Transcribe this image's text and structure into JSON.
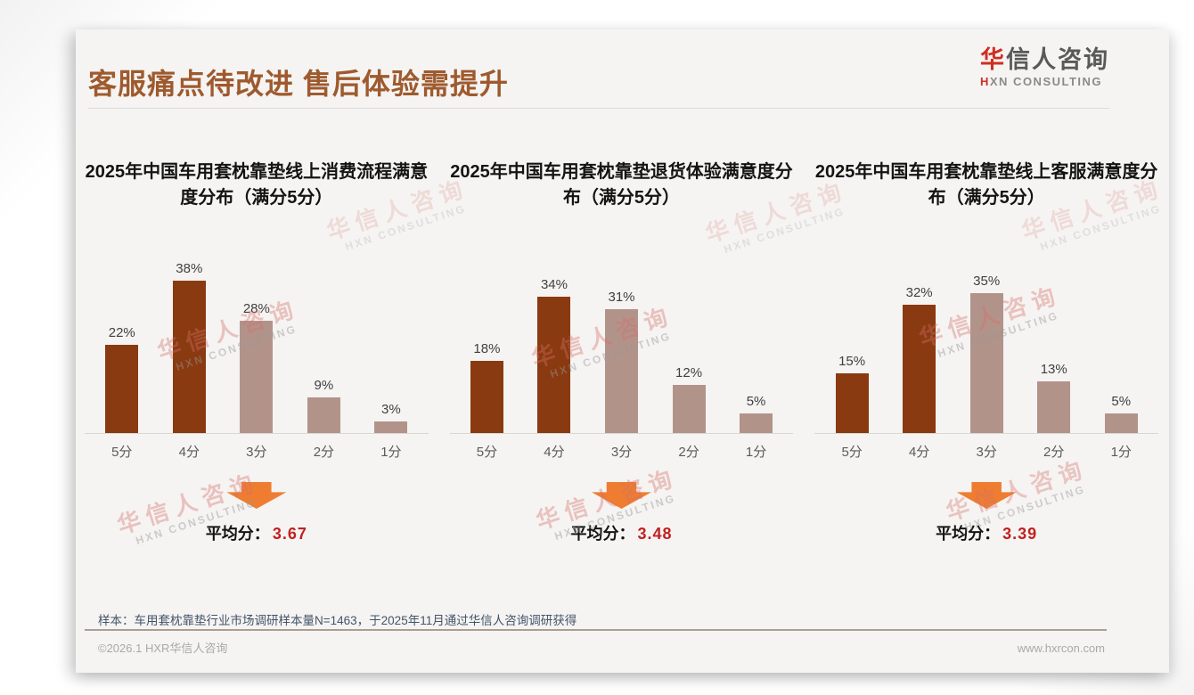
{
  "page": {
    "title": "客服痛点待改进 售后体验需提升",
    "logo": {
      "cn_first": "华",
      "cn_rest": "信人咨询",
      "en_first": "H",
      "en_rest": "XN CONSULTING"
    },
    "watermark": {
      "cn": "华信人咨询",
      "en": "HXN CONSULTING"
    }
  },
  "labels": {
    "avg_prefix": "平均分：",
    "unit": "%"
  },
  "chart_data": [
    {
      "type": "bar",
      "title": "2025年中国车用套枕靠垫线上消费流程满意度分布（满分5分）",
      "categories": [
        "5分",
        "4分",
        "3分",
        "2分",
        "1分"
      ],
      "values": [
        22,
        38,
        28,
        9,
        3
      ],
      "unit": "%",
      "ylim": [
        0,
        40
      ],
      "grid": false,
      "average": "3.67",
      "bar_colors": [
        "#8a3a10",
        "#8a3a10",
        "#b2938a",
        "#b2938a",
        "#b2938a"
      ]
    },
    {
      "type": "bar",
      "title": "2025年中国车用套枕靠垫退货体验满意度分布（满分5分）",
      "categories": [
        "5分",
        "4分",
        "3分",
        "2分",
        "1分"
      ],
      "values": [
        18,
        34,
        31,
        12,
        5
      ],
      "unit": "%",
      "ylim": [
        0,
        40
      ],
      "grid": false,
      "average": "3.48",
      "bar_colors": [
        "#8a3a10",
        "#8a3a10",
        "#b2938a",
        "#b2938a",
        "#b2938a"
      ]
    },
    {
      "type": "bar",
      "title": "2025年中国车用套枕靠垫线上客服满意度分布（满分5分）",
      "categories": [
        "5分",
        "4分",
        "3分",
        "2分",
        "1分"
      ],
      "values": [
        15,
        32,
        35,
        13,
        5
      ],
      "unit": "%",
      "ylim": [
        0,
        40
      ],
      "grid": false,
      "average": "3.39",
      "bar_colors": [
        "#8a3a10",
        "#8a3a10",
        "#b2938a",
        "#b2938a",
        "#b2938a"
      ]
    }
  ],
  "footer": {
    "sample_note": "样本：车用套枕靠垫行业市场调研样本量N=1463，于2025年11月通过华信人咨询调研获得",
    "copyright": "©2026.1 HXR华信人咨询",
    "website": "www.hxrcon.com"
  },
  "colors": {
    "bar_dark": "#8a3a10",
    "bar_light": "#b2938a",
    "title_brown": "#9e5a2e",
    "arrow_orange": "#ee7d31",
    "average_red": "#c02121",
    "note_blue": "#44546a",
    "card_bg": "#f5f4f2"
  }
}
